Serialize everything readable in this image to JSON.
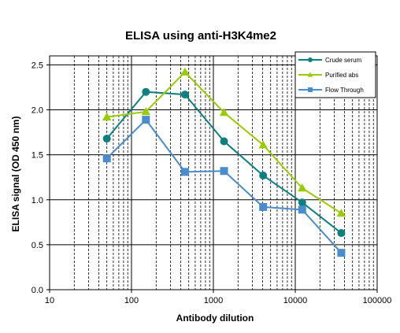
{
  "chart_data": {
    "type": "line",
    "title": "ELISA using anti-H3K4me2",
    "xlabel": "Antibody dilution",
    "ylabel": "ELISA signal (OD 450 nm)",
    "x_scale": "log",
    "xlim": [
      10,
      100000
    ],
    "ylim": [
      0,
      2.6
    ],
    "x_ticks": [
      "10",
      "100",
      "1000",
      "10000",
      "100000"
    ],
    "y_ticks": [
      "0.0",
      "0.5",
      "1.0",
      "1.5",
      "2.0",
      "2.5"
    ],
    "grid": "both",
    "legend_position": "top-right",
    "x": [
      50,
      150,
      450,
      1350,
      4050,
      12150,
      36450
    ],
    "series": [
      {
        "name": "Crude serum",
        "color": "#0e8080",
        "marker": "circle",
        "values": [
          1.68,
          2.2,
          2.17,
          1.65,
          1.27,
          0.97,
          0.63
        ]
      },
      {
        "name": "Purified abs",
        "color": "#99cc00",
        "marker": "triangle",
        "values": [
          1.92,
          1.98,
          2.42,
          1.97,
          1.61,
          1.13,
          0.85
        ]
      },
      {
        "name": "Flow Through",
        "color": "#4a8ccc",
        "marker": "square",
        "values": [
          1.46,
          1.89,
          1.31,
          1.32,
          0.92,
          0.89,
          0.41
        ]
      }
    ]
  }
}
